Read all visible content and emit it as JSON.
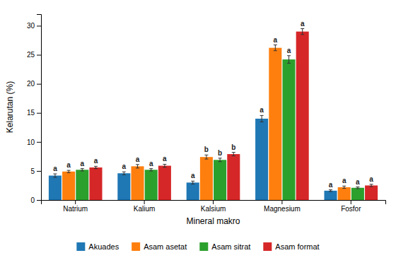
{
  "chart_data": {
    "type": "bar",
    "categories": [
      "Natrium",
      "Kalium",
      "Kalsium",
      "Magnesium",
      "Fosfor"
    ],
    "series": [
      {
        "name": "Akuades",
        "values": [
          4.2,
          4.6,
          3.0,
          14.0,
          1.6
        ],
        "errors": [
          0.3,
          0.25,
          0.25,
          0.55,
          0.15
        ],
        "sig_labels": [
          "a",
          "a",
          "a",
          "a",
          "a"
        ]
      },
      {
        "name": "Asam asetat",
        "values": [
          4.9,
          5.8,
          7.4,
          26.2,
          2.2
        ],
        "errors": [
          0.2,
          0.3,
          0.35,
          0.5,
          0.2
        ],
        "sig_labels": [
          "a",
          "a",
          "b",
          "a",
          "a"
        ]
      },
      {
        "name": "Asam sitrat",
        "values": [
          5.2,
          5.2,
          6.9,
          24.2,
          2.1
        ],
        "errors": [
          0.2,
          0.2,
          0.3,
          0.65,
          0.15
        ],
        "sig_labels": [
          "a",
          "a",
          "b",
          "a",
          "a"
        ]
      },
      {
        "name": "Asam format",
        "values": [
          5.6,
          5.9,
          7.9,
          29.0,
          2.5
        ],
        "errors": [
          0.2,
          0.25,
          0.3,
          0.5,
          0.2
        ],
        "sig_labels": [
          "a",
          "a",
          "b",
          "a",
          "a"
        ]
      }
    ],
    "xlabel": "Mineral makro",
    "ylabel": "Kelarutan (%)",
    "ylim": [
      0,
      32
    ],
    "yticks": [
      0,
      5,
      10,
      15,
      20,
      25,
      30
    ],
    "grid": false,
    "legend": "bottom"
  }
}
